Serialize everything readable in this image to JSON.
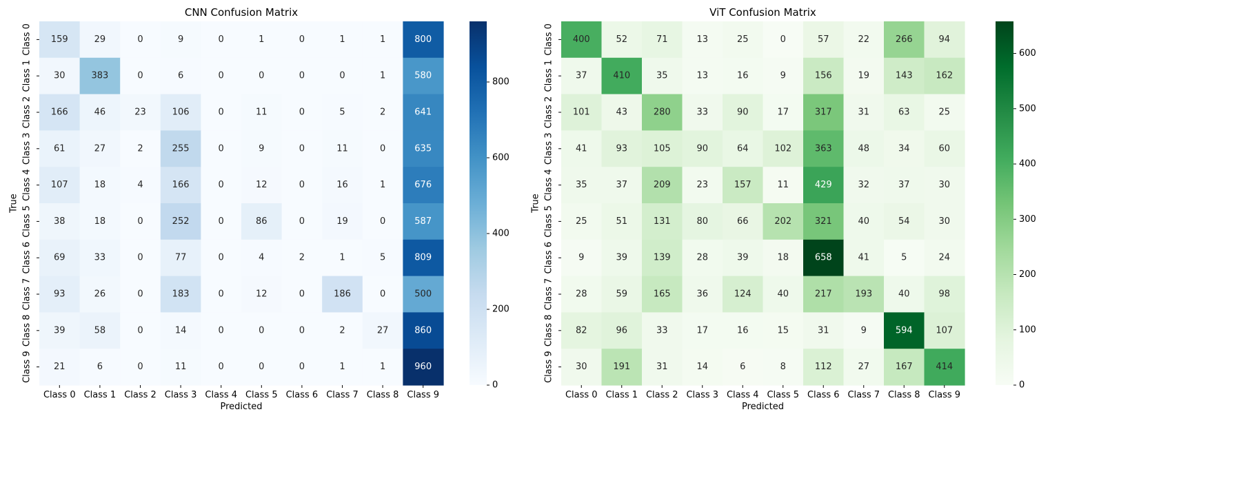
{
  "chart_data": [
    {
      "type": "heatmap",
      "title": "CNN Confusion Matrix",
      "xlabel": "Predicted",
      "ylabel": "True",
      "x_categories": [
        "Class 0",
        "Class 1",
        "Class 2",
        "Class 3",
        "Class 4",
        "Class 5",
        "Class 6",
        "Class 7",
        "Class 8",
        "Class 9"
      ],
      "y_categories": [
        "Class 0",
        "Class 1",
        "Class 2",
        "Class 3",
        "Class 4",
        "Class 5",
        "Class 6",
        "Class 7",
        "Class 8",
        "Class 9"
      ],
      "values": [
        [
          159,
          29,
          0,
          9,
          0,
          1,
          0,
          1,
          1,
          800
        ],
        [
          30,
          383,
          0,
          6,
          0,
          0,
          0,
          0,
          1,
          580
        ],
        [
          166,
          46,
          23,
          106,
          0,
          11,
          0,
          5,
          2,
          641
        ],
        [
          61,
          27,
          2,
          255,
          0,
          9,
          0,
          11,
          0,
          635
        ],
        [
          107,
          18,
          4,
          166,
          0,
          12,
          0,
          16,
          1,
          676
        ],
        [
          38,
          18,
          0,
          252,
          0,
          86,
          0,
          19,
          0,
          587
        ],
        [
          69,
          33,
          0,
          77,
          0,
          4,
          2,
          1,
          5,
          809
        ],
        [
          93,
          26,
          0,
          183,
          0,
          12,
          0,
          186,
          0,
          500
        ],
        [
          39,
          58,
          0,
          14,
          0,
          0,
          0,
          2,
          27,
          860
        ],
        [
          21,
          6,
          0,
          11,
          0,
          0,
          0,
          1,
          1,
          960
        ]
      ],
      "colormap": "Blues",
      "vmin": 0,
      "vmax": 960,
      "colorbar_ticks": [
        0,
        200,
        400,
        600,
        800
      ]
    },
    {
      "type": "heatmap",
      "title": "ViT Confusion Matrix",
      "xlabel": "Predicted",
      "ylabel": "True",
      "x_categories": [
        "Class 0",
        "Class 1",
        "Class 2",
        "Class 3",
        "Class 4",
        "Class 5",
        "Class 6",
        "Class 7",
        "Class 8",
        "Class 9"
      ],
      "y_categories": [
        "Class 0",
        "Class 1",
        "Class 2",
        "Class 3",
        "Class 4",
        "Class 5",
        "Class 6",
        "Class 7",
        "Class 8",
        "Class 9"
      ],
      "values": [
        [
          400,
          52,
          71,
          13,
          25,
          0,
          57,
          22,
          266,
          94
        ],
        [
          37,
          410,
          35,
          13,
          16,
          9,
          156,
          19,
          143,
          162
        ],
        [
          101,
          43,
          280,
          33,
          90,
          17,
          317,
          31,
          63,
          25
        ],
        [
          41,
          93,
          105,
          90,
          64,
          102,
          363,
          48,
          34,
          60
        ],
        [
          35,
          37,
          209,
          23,
          157,
          11,
          429,
          32,
          37,
          30
        ],
        [
          25,
          51,
          131,
          80,
          66,
          202,
          321,
          40,
          54,
          30
        ],
        [
          9,
          39,
          139,
          28,
          39,
          18,
          658,
          41,
          5,
          24
        ],
        [
          28,
          59,
          165,
          36,
          124,
          40,
          217,
          193,
          40,
          98
        ],
        [
          82,
          96,
          33,
          17,
          16,
          15,
          31,
          9,
          594,
          107
        ],
        [
          30,
          191,
          31,
          14,
          6,
          8,
          112,
          27,
          167,
          414
        ]
      ],
      "colormap": "Greens",
      "vmin": 0,
      "vmax": 658,
      "colorbar_ticks": [
        0,
        100,
        200,
        300,
        400,
        500,
        600
      ]
    }
  ]
}
